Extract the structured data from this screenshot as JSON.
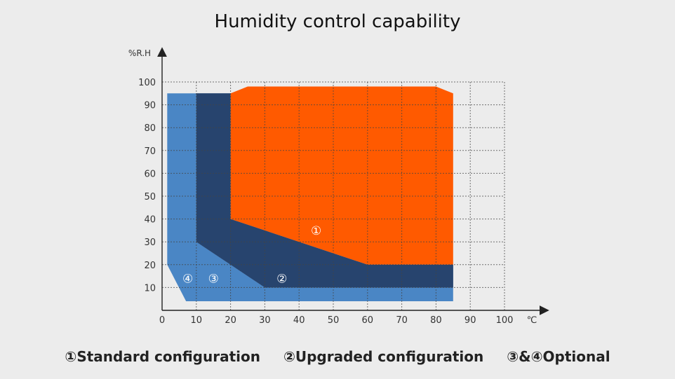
{
  "chart_data": {
    "type": "area",
    "title": "Humidity control capability",
    "ylabel": "%R.H",
    "xlabel": "℃",
    "xlim": [
      0,
      100
    ],
    "ylim": [
      0,
      100
    ],
    "x_ticks": [
      0,
      10,
      20,
      30,
      40,
      50,
      60,
      70,
      80,
      90,
      100
    ],
    "y_ticks": [
      10,
      20,
      30,
      40,
      50,
      60,
      70,
      80,
      90,
      100
    ],
    "grid": true,
    "regions": [
      {
        "label": "④",
        "color": "#4a86c5",
        "points": [
          [
            1.5,
            95
          ],
          [
            10,
            95
          ],
          [
            10,
            30
          ],
          [
            30,
            10
          ],
          [
            85,
            10
          ],
          [
            85,
            4
          ],
          [
            7,
            4
          ],
          [
            1.5,
            20
          ]
        ],
        "label_at": [
          7.5,
          14
        ]
      },
      {
        "label": "③",
        "color": "#3a689f",
        "points": [
          [
            10,
            95
          ],
          [
            20,
            95
          ],
          [
            20,
            40
          ],
          [
            60,
            20
          ],
          [
            85,
            20
          ],
          [
            85,
            10
          ],
          [
            30,
            10
          ],
          [
            10,
            30
          ]
        ],
        "label_at": [
          15,
          14
        ]
      },
      {
        "label": "②",
        "color": "#27446e",
        "points": [
          [
            10,
            95
          ],
          [
            20,
            95
          ],
          [
            20,
            40
          ],
          [
            60,
            20
          ],
          [
            85,
            20
          ],
          [
            85,
            10
          ],
          [
            30,
            10
          ],
          [
            10,
            30
          ]
        ],
        "label_at": [
          35,
          14
        ]
      },
      {
        "label": "①",
        "color": "#ff5a00",
        "points": [
          [
            20,
            95
          ],
          [
            25,
            98
          ],
          [
            80,
            98
          ],
          [
            85,
            95
          ],
          [
            85,
            20
          ],
          [
            60,
            20
          ],
          [
            20,
            40
          ]
        ],
        "label_at": [
          45,
          35
        ]
      }
    ],
    "legend": [
      "①Standard configuration",
      "②Upgraded configuration",
      "③&④Optional"
    ]
  }
}
